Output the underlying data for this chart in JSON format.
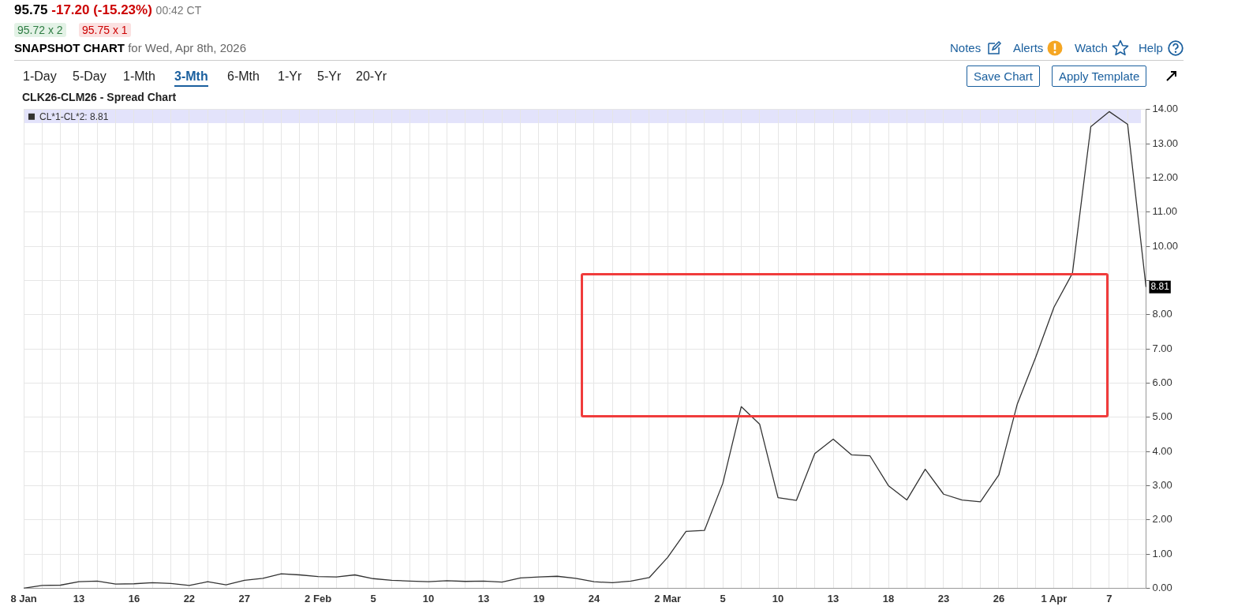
{
  "chart_data": {
    "type": "line",
    "title": "CLK26-CLM26 - Spread Chart",
    "annotations": [
      "95.75",
      "-17.20 (-15.23%)",
      "00:42 CT",
      "95.72 x 2",
      "95.75 x 1",
      "SNAPSHOT CHART",
      "for Wed, Apr 8th, 2026",
      "1-Day",
      "5-Day",
      "1-Mth",
      "3-Mth",
      "6-Mth",
      "1-Yr",
      "5-Yr",
      "20-Yr",
      "Notes",
      "Alerts",
      "Watch",
      "Help",
      "Save Chart",
      "Apply Template",
      "8.81"
    ],
    "categories": [
      "8 Jan",
      null,
      null,
      "13",
      null,
      null,
      "16",
      null,
      null,
      "22",
      null,
      null,
      "27",
      null,
      null,
      null,
      "2 Feb",
      null,
      null,
      "5",
      null,
      null,
      "10",
      null,
      null,
      "13",
      null,
      null,
      "19",
      null,
      null,
      "24",
      null,
      null,
      null,
      "2 Mar",
      null,
      null,
      "5",
      null,
      null,
      "10",
      null,
      null,
      "13",
      null,
      null,
      "18",
      null,
      null,
      "23",
      null,
      null,
      "26",
      null,
      null,
      "1 Apr",
      null,
      null,
      "7",
      null,
      null
    ],
    "series": [
      {
        "name": "CL*1-CL*2: 8.81",
        "color": "#333333",
        "values": [
          0,
          0.08,
          0.09,
          0.19,
          0.21,
          0.12,
          0.13,
          0.16,
          0.14,
          0.08,
          0.19,
          0.1,
          0.23,
          0.29,
          0.42,
          0.39,
          0.34,
          0.33,
          0.39,
          0.28,
          0.23,
          0.21,
          0.19,
          0.22,
          0.2,
          0.21,
          0.18,
          0.3,
          0.33,
          0.35,
          0.29,
          0.19,
          0.16,
          0.21,
          0.31,
          0.9,
          1.66,
          1.69,
          3.07,
          5.31,
          4.8,
          2.65,
          2.57,
          3.94,
          4.36,
          3.9,
          3.87,
          3.0,
          2.58,
          3.48,
          2.75,
          2.58,
          2.53,
          3.31,
          5.38,
          6.75,
          8.22,
          9.21,
          13.5,
          13.94,
          13.57,
          8.81
        ]
      }
    ],
    "ylim": [
      0,
      14
    ],
    "yticks": [
      {
        "value": 0,
        "label": "0.00"
      },
      {
        "value": 1,
        "label": "1.00"
      },
      {
        "value": 2,
        "label": "2.00"
      },
      {
        "value": 3,
        "label": "3.00"
      },
      {
        "value": 4,
        "label": "4.00"
      },
      {
        "value": 5,
        "label": "5.00"
      },
      {
        "value": 6,
        "label": "6.00"
      },
      {
        "value": 7,
        "label": "7.00"
      },
      {
        "value": 8,
        "label": "8.00"
      },
      {
        "value": 9,
        "label": null
      },
      {
        "value": 10,
        "label": "10.00"
      },
      {
        "value": 11,
        "label": "11.00"
      },
      {
        "value": 12,
        "label": "12.00"
      },
      {
        "value": 13,
        "label": "13.00"
      },
      {
        "value": 14,
        "label": "14.00"
      }
    ],
    "grid": true,
    "legend": "top left",
    "marker": "none",
    "line_style": "solid"
  }
}
